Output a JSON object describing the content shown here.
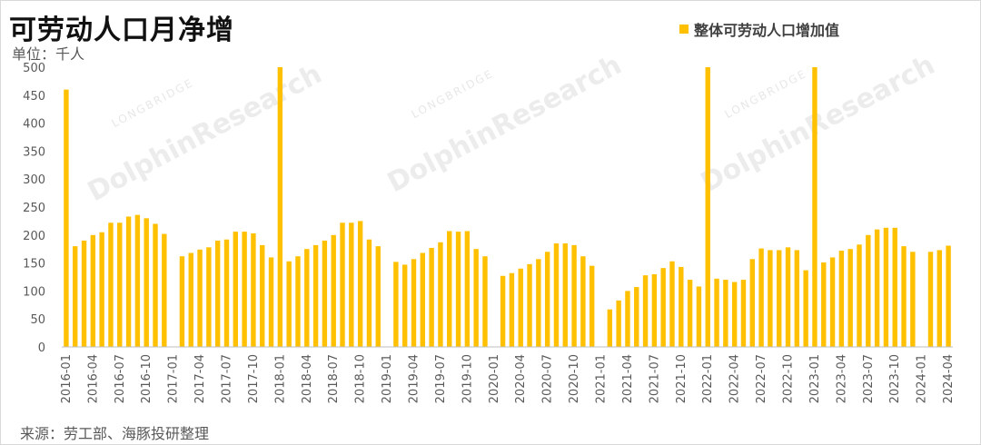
{
  "title": "可劳动人口月净增",
  "unit_label": "单位：千人",
  "source": "来源：劳工部、海豚投研整理",
  "legend": {
    "label": "整体可劳动人口增加值",
    "color": "#ffc000"
  },
  "watermark": {
    "brand": "DolphinResearch",
    "small": "LONGBRIDGE"
  },
  "chart_data": {
    "type": "bar",
    "title": "可劳动人口月净增",
    "ylabel": "单位：千人",
    "xlabel": "",
    "ylim": [
      0,
      500
    ],
    "yticks": [
      0,
      50,
      100,
      150,
      200,
      250,
      300,
      350,
      400,
      450,
      500
    ],
    "grid": false,
    "legend_position": "top-right",
    "x_tick_labels": [
      "2016-01",
      "2016-04",
      "2016-07",
      "2016-10",
      "2017-01",
      "2017-04",
      "2017-07",
      "2017-10",
      "2018-01",
      "2018-04",
      "2018-07",
      "2018-10",
      "2019-01",
      "2019-04",
      "2019-07",
      "2019-10",
      "2020-01",
      "2020-04",
      "2020-07",
      "2020-10",
      "2021-01",
      "2021-04",
      "2021-07",
      "2021-10",
      "2022-01",
      "2022-04",
      "2022-07",
      "2022-10",
      "2023-01",
      "2023-04",
      "2023-07",
      "2023-10",
      "2024-01",
      "2024-04"
    ],
    "categories": [
      "2016-01",
      "2016-02",
      "2016-03",
      "2016-04",
      "2016-05",
      "2016-06",
      "2016-07",
      "2016-08",
      "2016-09",
      "2016-10",
      "2016-11",
      "2016-12",
      "2017-01",
      "2017-02",
      "2017-03",
      "2017-04",
      "2017-05",
      "2017-06",
      "2017-07",
      "2017-08",
      "2017-09",
      "2017-10",
      "2017-11",
      "2017-12",
      "2018-01",
      "2018-02",
      "2018-03",
      "2018-04",
      "2018-05",
      "2018-06",
      "2018-07",
      "2018-08",
      "2018-09",
      "2018-10",
      "2018-11",
      "2018-12",
      "2019-01",
      "2019-02",
      "2019-03",
      "2019-04",
      "2019-05",
      "2019-06",
      "2019-07",
      "2019-08",
      "2019-09",
      "2019-10",
      "2019-11",
      "2019-12",
      "2020-01",
      "2020-02",
      "2020-03",
      "2020-04",
      "2020-05",
      "2020-06",
      "2020-07",
      "2020-08",
      "2020-09",
      "2020-10",
      "2020-11",
      "2020-12",
      "2021-01",
      "2021-02",
      "2021-03",
      "2021-04",
      "2021-05",
      "2021-06",
      "2021-07",
      "2021-08",
      "2021-09",
      "2021-10",
      "2021-11",
      "2021-12",
      "2022-01",
      "2022-02",
      "2022-03",
      "2022-04",
      "2022-05",
      "2022-06",
      "2022-07",
      "2022-08",
      "2022-09",
      "2022-10",
      "2022-11",
      "2022-12",
      "2023-01",
      "2023-02",
      "2023-03",
      "2023-04",
      "2023-05",
      "2023-06",
      "2023-07",
      "2023-08",
      "2023-09",
      "2023-10",
      "2023-11",
      "2023-12",
      "2024-01",
      "2024-02",
      "2024-03",
      "2024-04"
    ],
    "series": [
      {
        "name": "整体可劳动人口增加值",
        "color": "#ffc000",
        "values": [
          460,
          180,
          190,
          200,
          205,
          222,
          222,
          233,
          236,
          230,
          220,
          202,
          null,
          162,
          168,
          174,
          178,
          190,
          192,
          206,
          206,
          203,
          182,
          160,
          500,
          153,
          162,
          175,
          182,
          190,
          200,
          222,
          222,
          225,
          192,
          180,
          null,
          152,
          147,
          157,
          168,
          177,
          187,
          207,
          206,
          207,
          175,
          162,
          null,
          127,
          132,
          140,
          148,
          157,
          170,
          185,
          185,
          182,
          162,
          145,
          null,
          67,
          83,
          100,
          107,
          128,
          130,
          141,
          153,
          143,
          120,
          108,
          500,
          122,
          120,
          116,
          120,
          157,
          176,
          173,
          173,
          178,
          173,
          137,
          500,
          151,
          160,
          172,
          175,
          183,
          200,
          210,
          213,
          213,
          180,
          170,
          null,
          170,
          173,
          181
        ]
      }
    ]
  }
}
